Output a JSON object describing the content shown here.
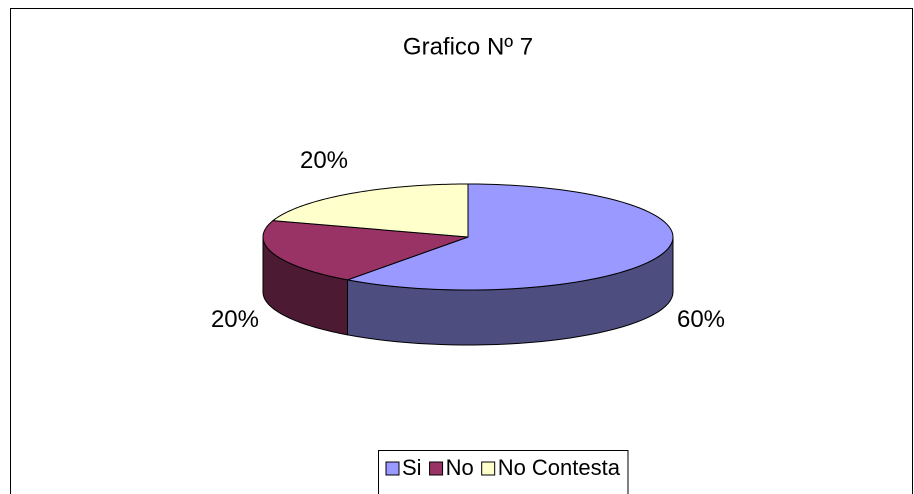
{
  "chart_data": {
    "type": "pie3d",
    "title": "Grafico Nº 7",
    "categories": [
      "Si",
      "No",
      "No Contesta"
    ],
    "values": [
      60,
      20,
      20
    ],
    "value_labels": [
      "60%",
      "20%",
      "20%"
    ],
    "colors": [
      "#9999ff",
      "#993366",
      "#ffffcc"
    ],
    "legend": "bottom"
  }
}
